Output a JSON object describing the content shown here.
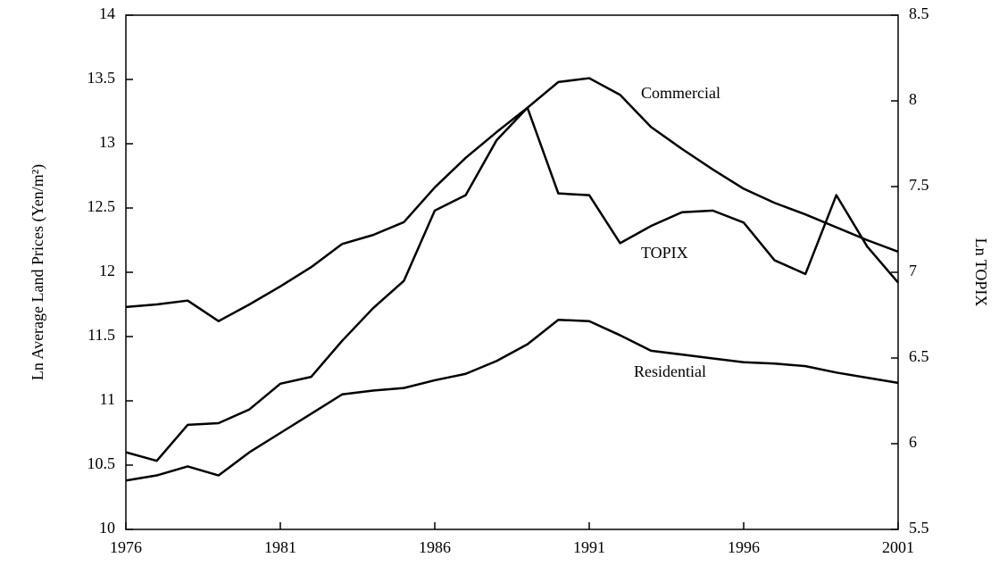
{
  "chart_data": {
    "type": "line",
    "x": [
      1976,
      1977,
      1978,
      1979,
      1980,
      1981,
      1982,
      1983,
      1984,
      1985,
      1986,
      1987,
      1988,
      1989,
      1990,
      1991,
      1992,
      1993,
      1994,
      1995,
      1996,
      1997,
      1998,
      1999,
      2000,
      2001
    ],
    "xlim": [
      1976,
      2001
    ],
    "xticks": [
      1976,
      1981,
      1986,
      1991,
      1996,
      2001
    ],
    "ylabel": "Ln Average Land Prices (Yen/m²)",
    "ylim": [
      10,
      14
    ],
    "yticks": [
      10,
      10.5,
      11,
      11.5,
      12,
      12.5,
      13,
      13.5,
      14
    ],
    "y2label": "Ln TOPIX",
    "y2lim": [
      5.5,
      8.5
    ],
    "y2ticks": [
      5.5,
      6,
      6.5,
      7,
      7.5,
      8,
      8.5
    ],
    "series": [
      {
        "name": "Commercial",
        "color": "#000000",
        "values": [
          11.73,
          11.75,
          11.78,
          11.62,
          11.75,
          11.89,
          12.04,
          12.22,
          12.29,
          12.39,
          12.66,
          12.89,
          13.09,
          13.28,
          13.48,
          13.51,
          13.38,
          13.13,
          12.96,
          12.8,
          12.65,
          12.54,
          12.45,
          12.35,
          12.25,
          12.16
        ]
      },
      {
        "name": "TOPIX",
        "color": "#000000",
        "axis": "y2",
        "values": [
          5.95,
          5.9,
          6.11,
          6.12,
          6.2,
          6.35,
          6.39,
          6.6,
          6.79,
          6.95,
          7.36,
          7.45,
          7.77,
          7.96,
          7.46,
          7.45,
          7.17,
          7.27,
          7.35,
          7.36,
          7.29,
          7.07,
          6.99,
          7.45,
          7.15,
          6.94
        ]
      },
      {
        "name": "Residential",
        "color": "#000000",
        "values": [
          10.38,
          10.42,
          10.49,
          10.42,
          10.6,
          10.75,
          10.9,
          11.05,
          11.08,
          11.1,
          11.16,
          11.21,
          11.31,
          11.44,
          11.63,
          11.62,
          11.51,
          11.39,
          11.36,
          11.33,
          11.3,
          11.29,
          11.27,
          11.22,
          11.18,
          11.14
        ]
      }
    ]
  }
}
